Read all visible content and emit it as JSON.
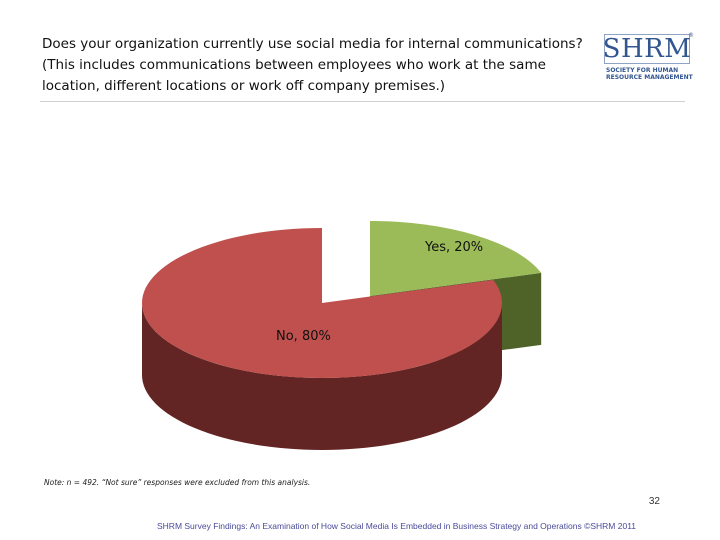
{
  "header": {
    "title": "Does your organization currently use social media for internal communications? (This includes communications between employees who work at the same location, different locations or work off company premises.)"
  },
  "logo": {
    "mark": "SHRM",
    "registered": "®",
    "tagline": "SOCIETY FOR HUMAN RESOURCE MANAGEMENT"
  },
  "chart_data": {
    "type": "pie",
    "style": "3d-exploded",
    "slices": [
      {
        "label": "Yes",
        "value": 20,
        "display": "Yes, 20%",
        "color": "#9bbb59",
        "side_color": "#4f6228"
      },
      {
        "label": "No",
        "value": 80,
        "display": "No, 80%",
        "color": "#c0504d",
        "side_color": "#632523"
      }
    ],
    "title": ""
  },
  "note": "Note: n = 492. “Not sure” responses were excluded from this analysis.",
  "page_number": "32",
  "footer": "SHRM Survey Findings: An Examination of How Social Media Is Embedded in Business Strategy and Operations ©SHRM 2011"
}
